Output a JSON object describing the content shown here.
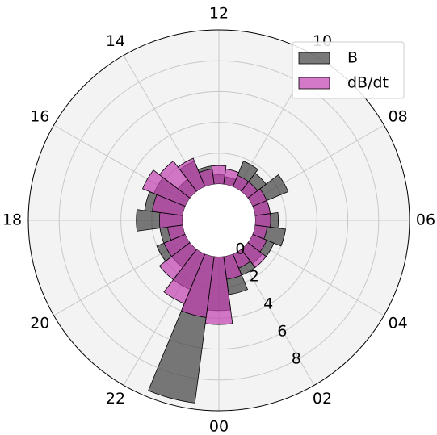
{
  "chart_data": {
    "type": "polar-bar",
    "x": [
      0,
      1,
      2,
      3,
      4,
      5,
      6,
      7,
      8,
      9,
      10,
      11,
      12,
      13,
      14,
      15,
      16,
      17,
      18,
      19,
      20,
      21,
      22,
      23
    ],
    "series": [
      {
        "name": "B",
        "color": "#404040",
        "values": [
          3.5,
          2.5,
          1.5,
          1.2,
          1.5,
          2.0,
          1.5,
          1.0,
          2.5,
          1.5,
          1.8,
          0.5,
          0.6,
          1.2,
          1.8,
          1.0,
          2.2,
          2.5,
          3.0,
          1.5,
          2.0,
          1.5,
          2.5,
          9.6
        ]
      },
      {
        "name": "dB/dt",
        "color": "#c040b0",
        "values": [
          4.4,
          1.5,
          1.0,
          1.5,
          1.0,
          0.8,
          1.0,
          1.0,
          1.0,
          0.8,
          0.8,
          1.0,
          1.2,
          1.0,
          2.0,
          2.5,
          3.0,
          2.0,
          1.5,
          1.0,
          1.5,
          2.5,
          3.5,
          4.0
        ]
      }
    ],
    "xlim": [
      0,
      24
    ],
    "xticks": [
      {
        "value": 0,
        "label": "00"
      },
      {
        "value": 2,
        "label": "02"
      },
      {
        "value": 4,
        "label": "04"
      },
      {
        "value": 6,
        "label": "06"
      },
      {
        "value": 8,
        "label": "08"
      },
      {
        "value": 10,
        "label": "10"
      },
      {
        "value": 12,
        "label": "12"
      },
      {
        "value": 14,
        "label": "14"
      },
      {
        "value": 16,
        "label": "16"
      },
      {
        "value": 18,
        "label": "18"
      },
      {
        "value": 20,
        "label": "20"
      },
      {
        "value": 22,
        "label": "22"
      }
    ],
    "ylim": [
      0,
      10
    ],
    "yticks": [
      0,
      2,
      4,
      6,
      8
    ],
    "grid": true,
    "legend": "upper right"
  }
}
